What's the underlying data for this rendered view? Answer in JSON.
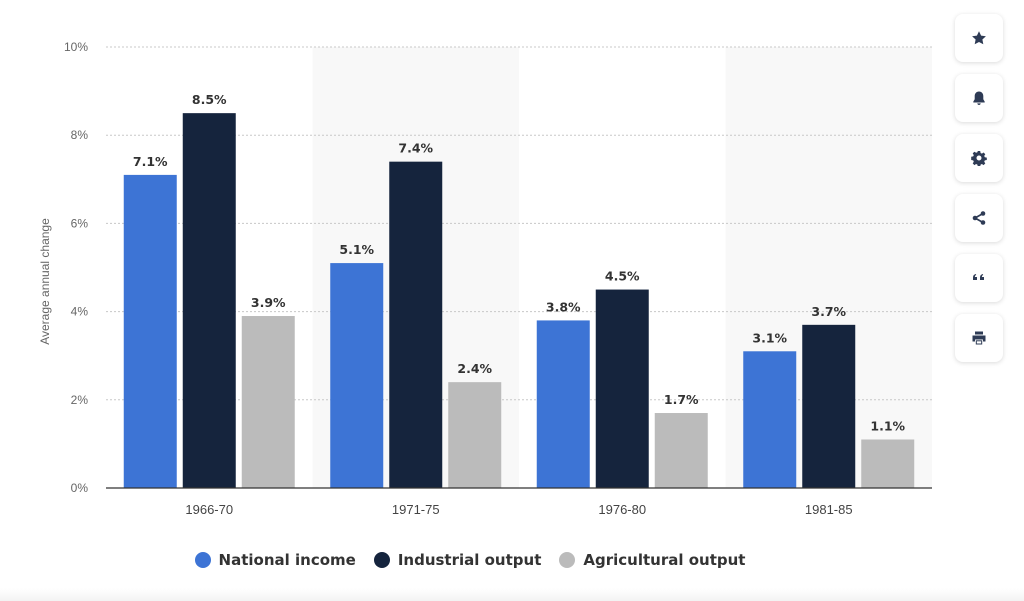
{
  "chart_data": {
    "type": "bar",
    "categories": [
      "1966-70",
      "1971-75",
      "1976-80",
      "1981-85"
    ],
    "series": [
      {
        "name": "National income",
        "values": [
          7.1,
          5.1,
          3.8,
          3.1
        ],
        "color": "#3d74d5"
      },
      {
        "name": "Industrial output",
        "values": [
          8.5,
          7.4,
          4.5,
          3.7
        ],
        "color": "#15243d"
      },
      {
        "name": "Agricultural output",
        "values": [
          3.9,
          2.4,
          1.7,
          1.1
        ],
        "color": "#bbbbbb"
      }
    ],
    "data_labels": [
      [
        "7.1%",
        "5.1%",
        "3.8%",
        "3.1%"
      ],
      [
        "8.5%",
        "7.4%",
        "4.5%",
        "3.7%"
      ],
      [
        "3.9%",
        "2.4%",
        "1.7%",
        "1.1%"
      ]
    ],
    "ylabel": "Average annual change",
    "ylim": [
      0,
      10
    ],
    "yticks": [
      0,
      2,
      4,
      6,
      8,
      10
    ],
    "ytick_labels": [
      "0%",
      "2%",
      "4%",
      "6%",
      "8%",
      "10%"
    ],
    "grid": true,
    "legend_position": "bottom"
  },
  "legend": {
    "items": [
      {
        "label": "National income",
        "color": "#3d74d5"
      },
      {
        "label": "Industrial output",
        "color": "#15243d"
      },
      {
        "label": "Agricultural output",
        "color": "#bbbbbb"
      }
    ]
  },
  "sidebar": {
    "buttons": [
      {
        "icon": "star-icon"
      },
      {
        "icon": "bell-icon"
      },
      {
        "icon": "gear-icon"
      },
      {
        "icon": "share-icon"
      },
      {
        "icon": "quote-icon"
      },
      {
        "icon": "print-icon"
      }
    ]
  }
}
